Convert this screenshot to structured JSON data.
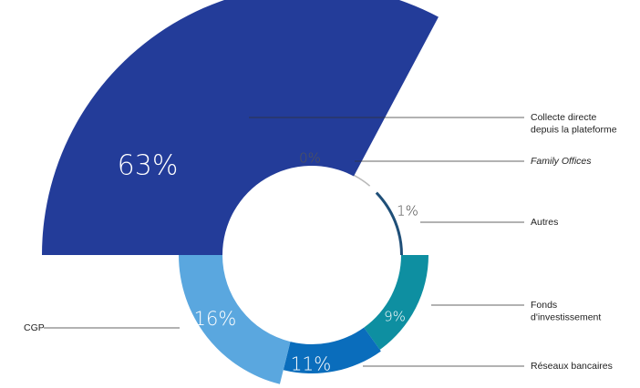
{
  "chart_data": {
    "type": "pie",
    "title": "",
    "categories": [
      "Collecte directe depuis la plateforme",
      "Family Offices",
      "Autres",
      "Fonds d'investissement",
      "Réseaux bancaires",
      "CGP"
    ],
    "values": [
      63,
      0,
      1,
      9,
      11,
      16
    ],
    "value_labels": [
      "63%",
      "0%",
      "1%",
      "9%",
      "11%",
      "16%"
    ],
    "legend": [
      {
        "lines": [
          "Collecte directe",
          "depuis la plateforme"
        ],
        "italic": false
      },
      {
        "lines": [
          "Family Offices"
        ],
        "italic": true
      },
      {
        "lines": [
          "Autres"
        ],
        "italic": false
      },
      {
        "lines": [
          "Fonds",
          "d'investissement"
        ],
        "italic": false
      },
      {
        "lines": [
          "Réseaux bancaires"
        ],
        "italic": false
      },
      {
        "lines": [
          "CGP"
        ],
        "italic": false
      }
    ],
    "colors": [
      "#233c99",
      "#b9b9b9",
      "#1f4f78",
      "#0e8fa1",
      "#0a6dbc",
      "#5aa7df"
    ],
    "legend_placement": "right and left, connected by leader lines",
    "style": "variable-radius rose / donut"
  }
}
